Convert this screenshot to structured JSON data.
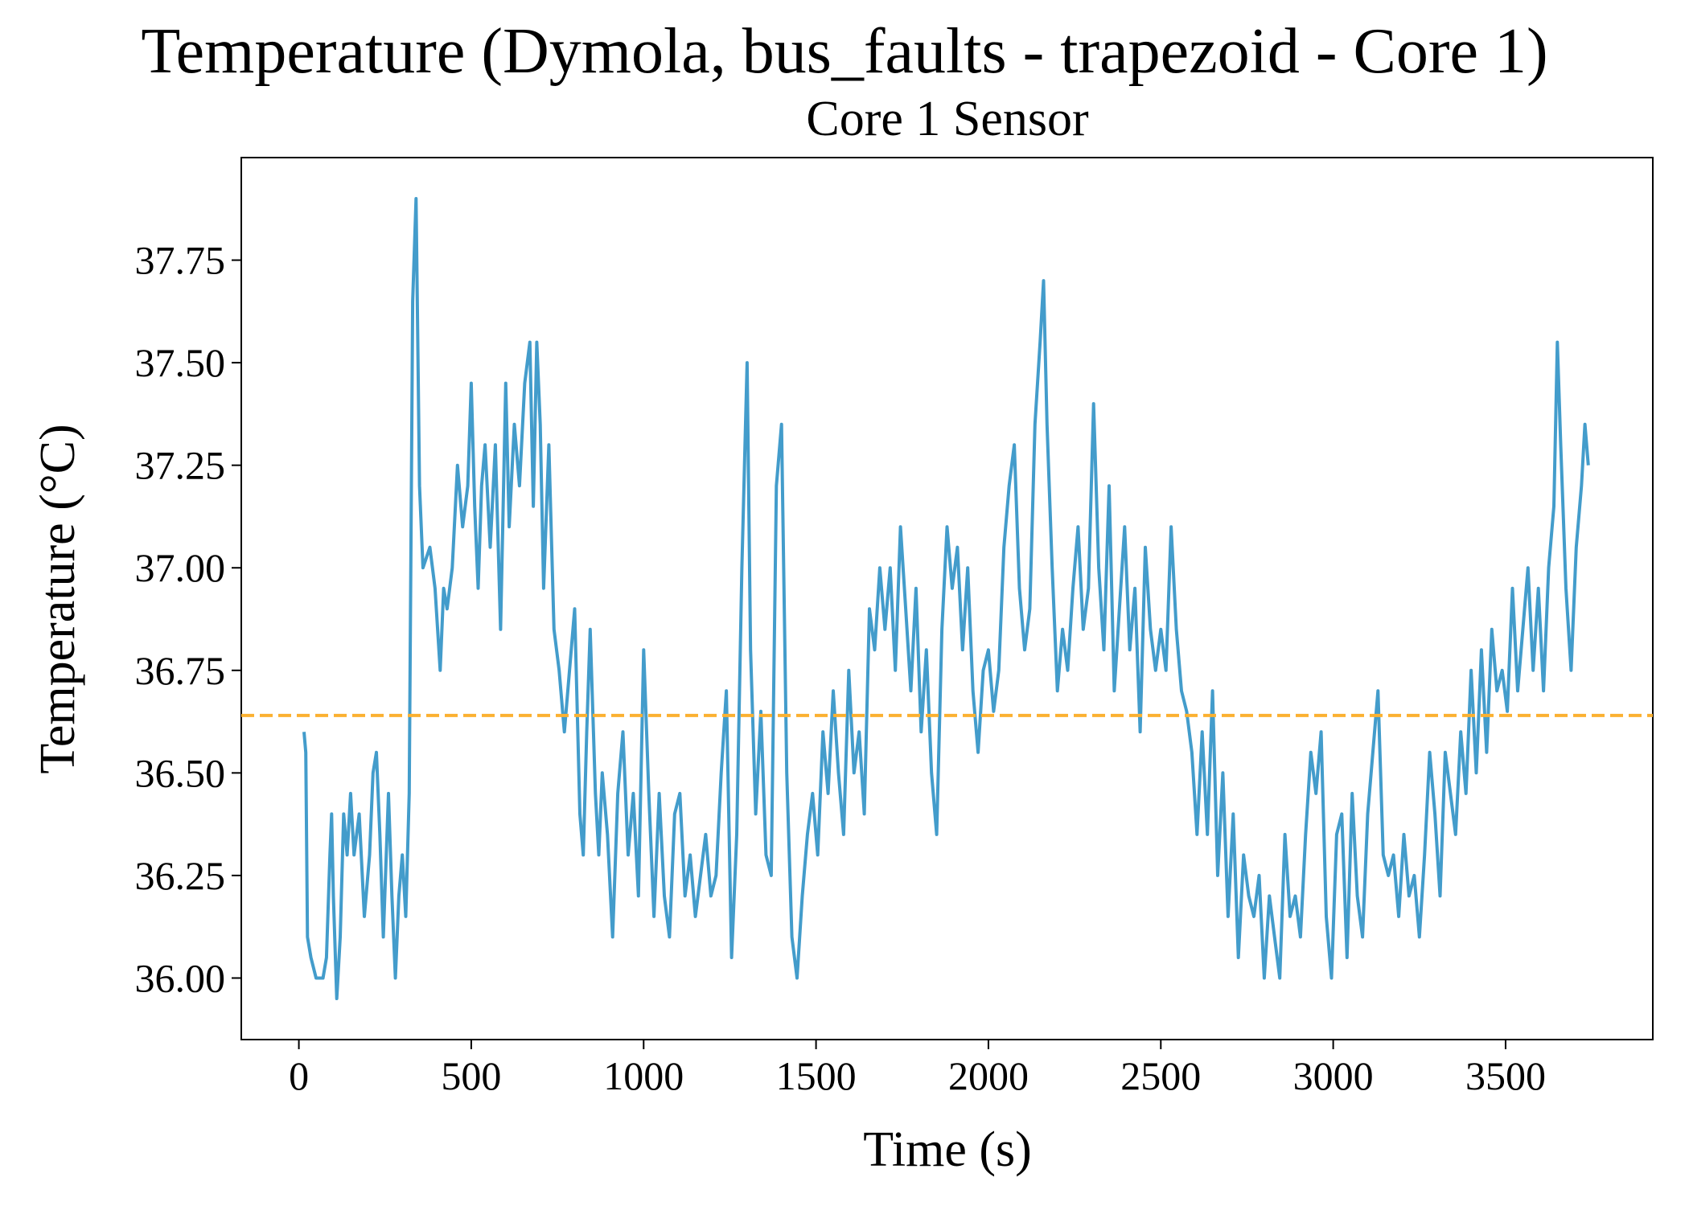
{
  "chart_data": {
    "type": "line",
    "suptitle": "Temperature (Dymola, bus_faults - trapezoid - Core 1)",
    "title": "Core 1 Sensor",
    "xlabel": "Time (s)",
    "ylabel": "Temperature (°C)",
    "x": [
      15,
      20,
      25,
      35,
      50,
      70,
      80,
      90,
      95,
      100,
      110,
      120,
      130,
      140,
      150,
      160,
      175,
      190,
      205,
      215,
      225,
      235,
      245,
      260,
      270,
      280,
      290,
      300,
      310,
      320,
      330,
      340,
      350,
      360,
      380,
      395,
      410,
      420,
      430,
      445,
      460,
      475,
      490,
      500,
      510,
      520,
      530,
      540,
      555,
      570,
      585,
      600,
      610,
      625,
      640,
      655,
      670,
      680,
      690,
      700,
      710,
      725,
      740,
      755,
      770,
      785,
      800,
      815,
      825,
      835,
      845,
      860,
      870,
      880,
      895,
      910,
      925,
      940,
      955,
      970,
      985,
      1000,
      1015,
      1030,
      1045,
      1060,
      1075,
      1090,
      1105,
      1120,
      1135,
      1150,
      1165,
      1180,
      1195,
      1210,
      1225,
      1240,
      1255,
      1270,
      1285,
      1300,
      1310,
      1325,
      1340,
      1355,
      1370,
      1385,
      1400,
      1415,
      1430,
      1445,
      1460,
      1475,
      1490,
      1505,
      1520,
      1535,
      1550,
      1565,
      1580,
      1595,
      1610,
      1625,
      1640,
      1655,
      1670,
      1685,
      1700,
      1715,
      1730,
      1745,
      1760,
      1775,
      1790,
      1805,
      1820,
      1835,
      1850,
      1865,
      1880,
      1895,
      1910,
      1925,
      1940,
      1955,
      1970,
      1985,
      2000,
      2015,
      2030,
      2045,
      2060,
      2075,
      2090,
      2105,
      2120,
      2135,
      2150,
      2160,
      2170,
      2185,
      2200,
      2215,
      2230,
      2245,
      2260,
      2275,
      2290,
      2305,
      2320,
      2335,
      2350,
      2365,
      2380,
      2395,
      2410,
      2425,
      2440,
      2455,
      2470,
      2485,
      2500,
      2515,
      2530,
      2545,
      2560,
      2575,
      2590,
      2605,
      2620,
      2635,
      2650,
      2665,
      2680,
      2695,
      2710,
      2725,
      2740,
      2755,
      2770,
      2785,
      2800,
      2815,
      2830,
      2845,
      2860,
      2875,
      2890,
      2905,
      2920,
      2935,
      2950,
      2965,
      2980,
      2995,
      3010,
      3025,
      3040,
      3055,
      3070,
      3085,
      3100,
      3115,
      3130,
      3145,
      3160,
      3175,
      3190,
      3205,
      3220,
      3235,
      3250,
      3265,
      3280,
      3295,
      3310,
      3325,
      3340,
      3355,
      3370,
      3385,
      3400,
      3415,
      3430,
      3445,
      3460,
      3475,
      3490,
      3505,
      3520,
      3535,
      3550,
      3565,
      3580,
      3595,
      3610,
      3625,
      3640,
      3650,
      3660,
      3675,
      3690,
      3705,
      3720,
      3730,
      3740
    ],
    "series": [
      {
        "color": "#439ccb",
        "values": [
          36.6,
          36.55,
          36.1,
          36.05,
          36.0,
          36.0,
          36.05,
          36.3,
          36.4,
          36.2,
          35.95,
          36.1,
          36.4,
          36.3,
          36.45,
          36.3,
          36.4,
          36.15,
          36.3,
          36.5,
          36.55,
          36.35,
          36.1,
          36.45,
          36.2,
          36.0,
          36.2,
          36.3,
          36.15,
          36.45,
          37.65,
          37.9,
          37.2,
          37.0,
          37.05,
          36.95,
          36.75,
          36.95,
          36.9,
          37.0,
          37.25,
          37.1,
          37.2,
          37.45,
          37.15,
          36.95,
          37.2,
          37.3,
          37.05,
          37.3,
          36.85,
          37.45,
          37.1,
          37.35,
          37.2,
          37.45,
          37.55,
          37.15,
          37.55,
          37.35,
          36.95,
          37.3,
          36.85,
          36.75,
          36.6,
          36.75,
          36.9,
          36.4,
          36.3,
          36.6,
          36.85,
          36.45,
          36.3,
          36.5,
          36.35,
          36.1,
          36.45,
          36.6,
          36.3,
          36.45,
          36.2,
          36.8,
          36.45,
          36.15,
          36.45,
          36.2,
          36.1,
          36.4,
          36.45,
          36.2,
          36.3,
          36.15,
          36.25,
          36.35,
          36.2,
          36.25,
          36.5,
          36.7,
          36.05,
          36.35,
          37.0,
          37.5,
          36.8,
          36.4,
          36.65,
          36.3,
          36.25,
          37.2,
          37.35,
          36.5,
          36.1,
          36.0,
          36.2,
          36.35,
          36.45,
          36.3,
          36.6,
          36.45,
          36.7,
          36.5,
          36.35,
          36.75,
          36.5,
          36.6,
          36.4,
          36.9,
          36.8,
          37.0,
          36.85,
          37.0,
          36.75,
          37.1,
          36.9,
          36.7,
          36.95,
          36.6,
          36.8,
          36.5,
          36.35,
          36.85,
          37.1,
          36.95,
          37.05,
          36.8,
          37.0,
          36.7,
          36.55,
          36.75,
          36.8,
          36.65,
          36.75,
          37.05,
          37.2,
          37.3,
          36.95,
          36.8,
          36.9,
          37.35,
          37.55,
          37.7,
          37.35,
          37.0,
          36.7,
          36.85,
          36.75,
          36.95,
          37.1,
          36.85,
          36.95,
          37.4,
          37.0,
          36.8,
          37.2,
          36.7,
          36.9,
          37.1,
          36.8,
          36.95,
          36.6,
          37.05,
          36.85,
          36.75,
          36.85,
          36.75,
          37.1,
          36.85,
          36.7,
          36.65,
          36.55,
          36.35,
          36.6,
          36.35,
          36.7,
          36.25,
          36.5,
          36.15,
          36.4,
          36.05,
          36.3,
          36.2,
          36.15,
          36.25,
          36.0,
          36.2,
          36.1,
          36.0,
          36.35,
          36.15,
          36.2,
          36.1,
          36.35,
          36.55,
          36.45,
          36.6,
          36.15,
          36.0,
          36.35,
          36.4,
          36.05,
          36.45,
          36.2,
          36.1,
          36.4,
          36.55,
          36.7,
          36.3,
          36.25,
          36.3,
          36.15,
          36.35,
          36.2,
          36.25,
          36.1,
          36.3,
          36.55,
          36.4,
          36.2,
          36.55,
          36.45,
          36.35,
          36.6,
          36.45,
          36.75,
          36.5,
          36.8,
          36.55,
          36.85,
          36.7,
          36.75,
          36.65,
          36.95,
          36.7,
          36.85,
          37.0,
          36.75,
          36.95,
          36.7,
          37.0,
          37.15,
          37.55,
          37.3,
          36.95,
          36.75,
          37.05,
          37.2,
          37.35,
          37.25
        ]
      }
    ],
    "hlines": [
      {
        "value": 36.64,
        "color": "#fbb131",
        "dashed": true
      }
    ],
    "xlim": [
      -167,
      3927
    ],
    "ylim": [
      35.85,
      38.0
    ],
    "xticks": [
      0,
      500,
      1000,
      1500,
      2000,
      2500,
      3000,
      3500
    ],
    "yticks": [
      {
        "value": 36,
        "label": "36.00"
      },
      36.25,
      {
        "value": 36.5,
        "label": "36.50"
      },
      36.75,
      {
        "value": 37,
        "label": "37.00"
      },
      37.25,
      {
        "value": 37.5,
        "label": "37.50"
      },
      37.75
    ],
    "grid": false
  }
}
